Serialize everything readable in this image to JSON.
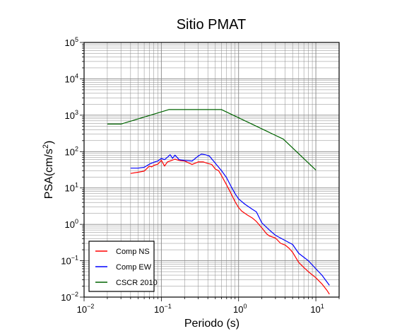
{
  "chart_data": {
    "type": "line",
    "title": "Sitio PMAT",
    "xlabel": "Periodo (s)",
    "ylabel": "PSA(cm/s²)",
    "ylabel_base": "PSA(cm/s",
    "ylabel_sup": "2",
    "ylabel_close": ")",
    "x_scale": "log",
    "y_scale": "log",
    "xlim": [
      0.01,
      20
    ],
    "ylim": [
      0.01,
      100000
    ],
    "grid": true,
    "legend_position": "bottom-left",
    "x_ticks": [
      {
        "value": 0.01,
        "base": "10",
        "exp": "−2"
      },
      {
        "value": 0.1,
        "base": "10",
        "exp": "−1"
      },
      {
        "value": 1,
        "base": "10",
        "exp": "0"
      },
      {
        "value": 10,
        "base": "10",
        "exp": "1"
      }
    ],
    "y_ticks": [
      {
        "value": 0.01,
        "base": "10",
        "exp": "−2"
      },
      {
        "value": 0.1,
        "base": "10",
        "exp": "−1"
      },
      {
        "value": 1,
        "base": "10",
        "exp": "0"
      },
      {
        "value": 10,
        "base": "10",
        "exp": "1"
      },
      {
        "value": 100,
        "base": "10",
        "exp": "2"
      },
      {
        "value": 1000,
        "base": "10",
        "exp": "3"
      },
      {
        "value": 10000,
        "base": "10",
        "exp": "4"
      },
      {
        "value": 100000,
        "base": "10",
        "exp": "5"
      }
    ],
    "series": [
      {
        "name": "Comp NS",
        "color": "#ff0000",
        "points": [
          [
            0.04,
            25
          ],
          [
            0.05,
            27
          ],
          [
            0.06,
            29
          ],
          [
            0.07,
            40
          ],
          [
            0.075,
            38
          ],
          [
            0.08,
            42
          ],
          [
            0.09,
            45
          ],
          [
            0.1,
            58
          ],
          [
            0.11,
            40
          ],
          [
            0.12,
            52
          ],
          [
            0.13,
            55
          ],
          [
            0.15,
            62
          ],
          [
            0.17,
            57
          ],
          [
            0.2,
            55
          ],
          [
            0.25,
            44
          ],
          [
            0.3,
            52
          ],
          [
            0.35,
            52
          ],
          [
            0.4,
            47
          ],
          [
            0.45,
            44
          ],
          [
            0.5,
            33
          ],
          [
            0.55,
            30
          ],
          [
            0.6,
            22
          ],
          [
            0.65,
            16
          ],
          [
            0.7,
            12
          ],
          [
            0.8,
            7
          ],
          [
            0.9,
            4.2
          ],
          [
            1.0,
            2.9
          ],
          [
            1.1,
            2.3
          ],
          [
            1.3,
            1.8
          ],
          [
            1.5,
            1.5
          ],
          [
            1.7,
            1.2
          ],
          [
            2.0,
            0.8
          ],
          [
            2.3,
            0.55
          ],
          [
            2.5,
            0.48
          ],
          [
            3.0,
            0.42
          ],
          [
            3.5,
            0.3
          ],
          [
            4.0,
            0.27
          ],
          [
            4.5,
            0.22
          ],
          [
            5.0,
            0.17
          ],
          [
            6.0,
            0.09
          ],
          [
            7.0,
            0.065
          ],
          [
            8.0,
            0.05
          ],
          [
            10.0,
            0.034
          ],
          [
            12.0,
            0.023
          ],
          [
            14.0,
            0.015
          ],
          [
            15.0,
            0.012
          ]
        ]
      },
      {
        "name": "Comp EW",
        "color": "#0000ff",
        "points": [
          [
            0.04,
            35
          ],
          [
            0.05,
            35
          ],
          [
            0.06,
            37
          ],
          [
            0.07,
            45
          ],
          [
            0.08,
            51
          ],
          [
            0.09,
            55
          ],
          [
            0.1,
            65
          ],
          [
            0.11,
            60
          ],
          [
            0.12,
            70
          ],
          [
            0.13,
            82
          ],
          [
            0.14,
            65
          ],
          [
            0.15,
            80
          ],
          [
            0.17,
            60
          ],
          [
            0.2,
            57
          ],
          [
            0.25,
            55
          ],
          [
            0.3,
            75
          ],
          [
            0.33,
            85
          ],
          [
            0.37,
            82
          ],
          [
            0.42,
            75
          ],
          [
            0.5,
            48
          ],
          [
            0.6,
            30
          ],
          [
            0.7,
            19
          ],
          [
            0.8,
            11
          ],
          [
            0.9,
            7
          ],
          [
            1.0,
            5
          ],
          [
            1.2,
            3.6
          ],
          [
            1.5,
            2.6
          ],
          [
            1.7,
            2.2
          ],
          [
            2.0,
            1.1
          ],
          [
            2.5,
            0.7
          ],
          [
            3.0,
            0.5
          ],
          [
            4.0,
            0.36
          ],
          [
            5.0,
            0.28
          ],
          [
            6.0,
            0.16
          ],
          [
            8.0,
            0.1
          ],
          [
            10.0,
            0.06
          ],
          [
            12.0,
            0.04
          ],
          [
            15.0,
            0.021
          ]
        ]
      },
      {
        "name": "CSCR 2010",
        "color": "#006400",
        "points": [
          [
            0.02,
            570
          ],
          [
            0.03,
            570
          ],
          [
            0.125,
            1430
          ],
          [
            0.6,
            1430
          ],
          [
            3.8,
            220
          ],
          [
            10.0,
            31
          ]
        ]
      }
    ]
  }
}
